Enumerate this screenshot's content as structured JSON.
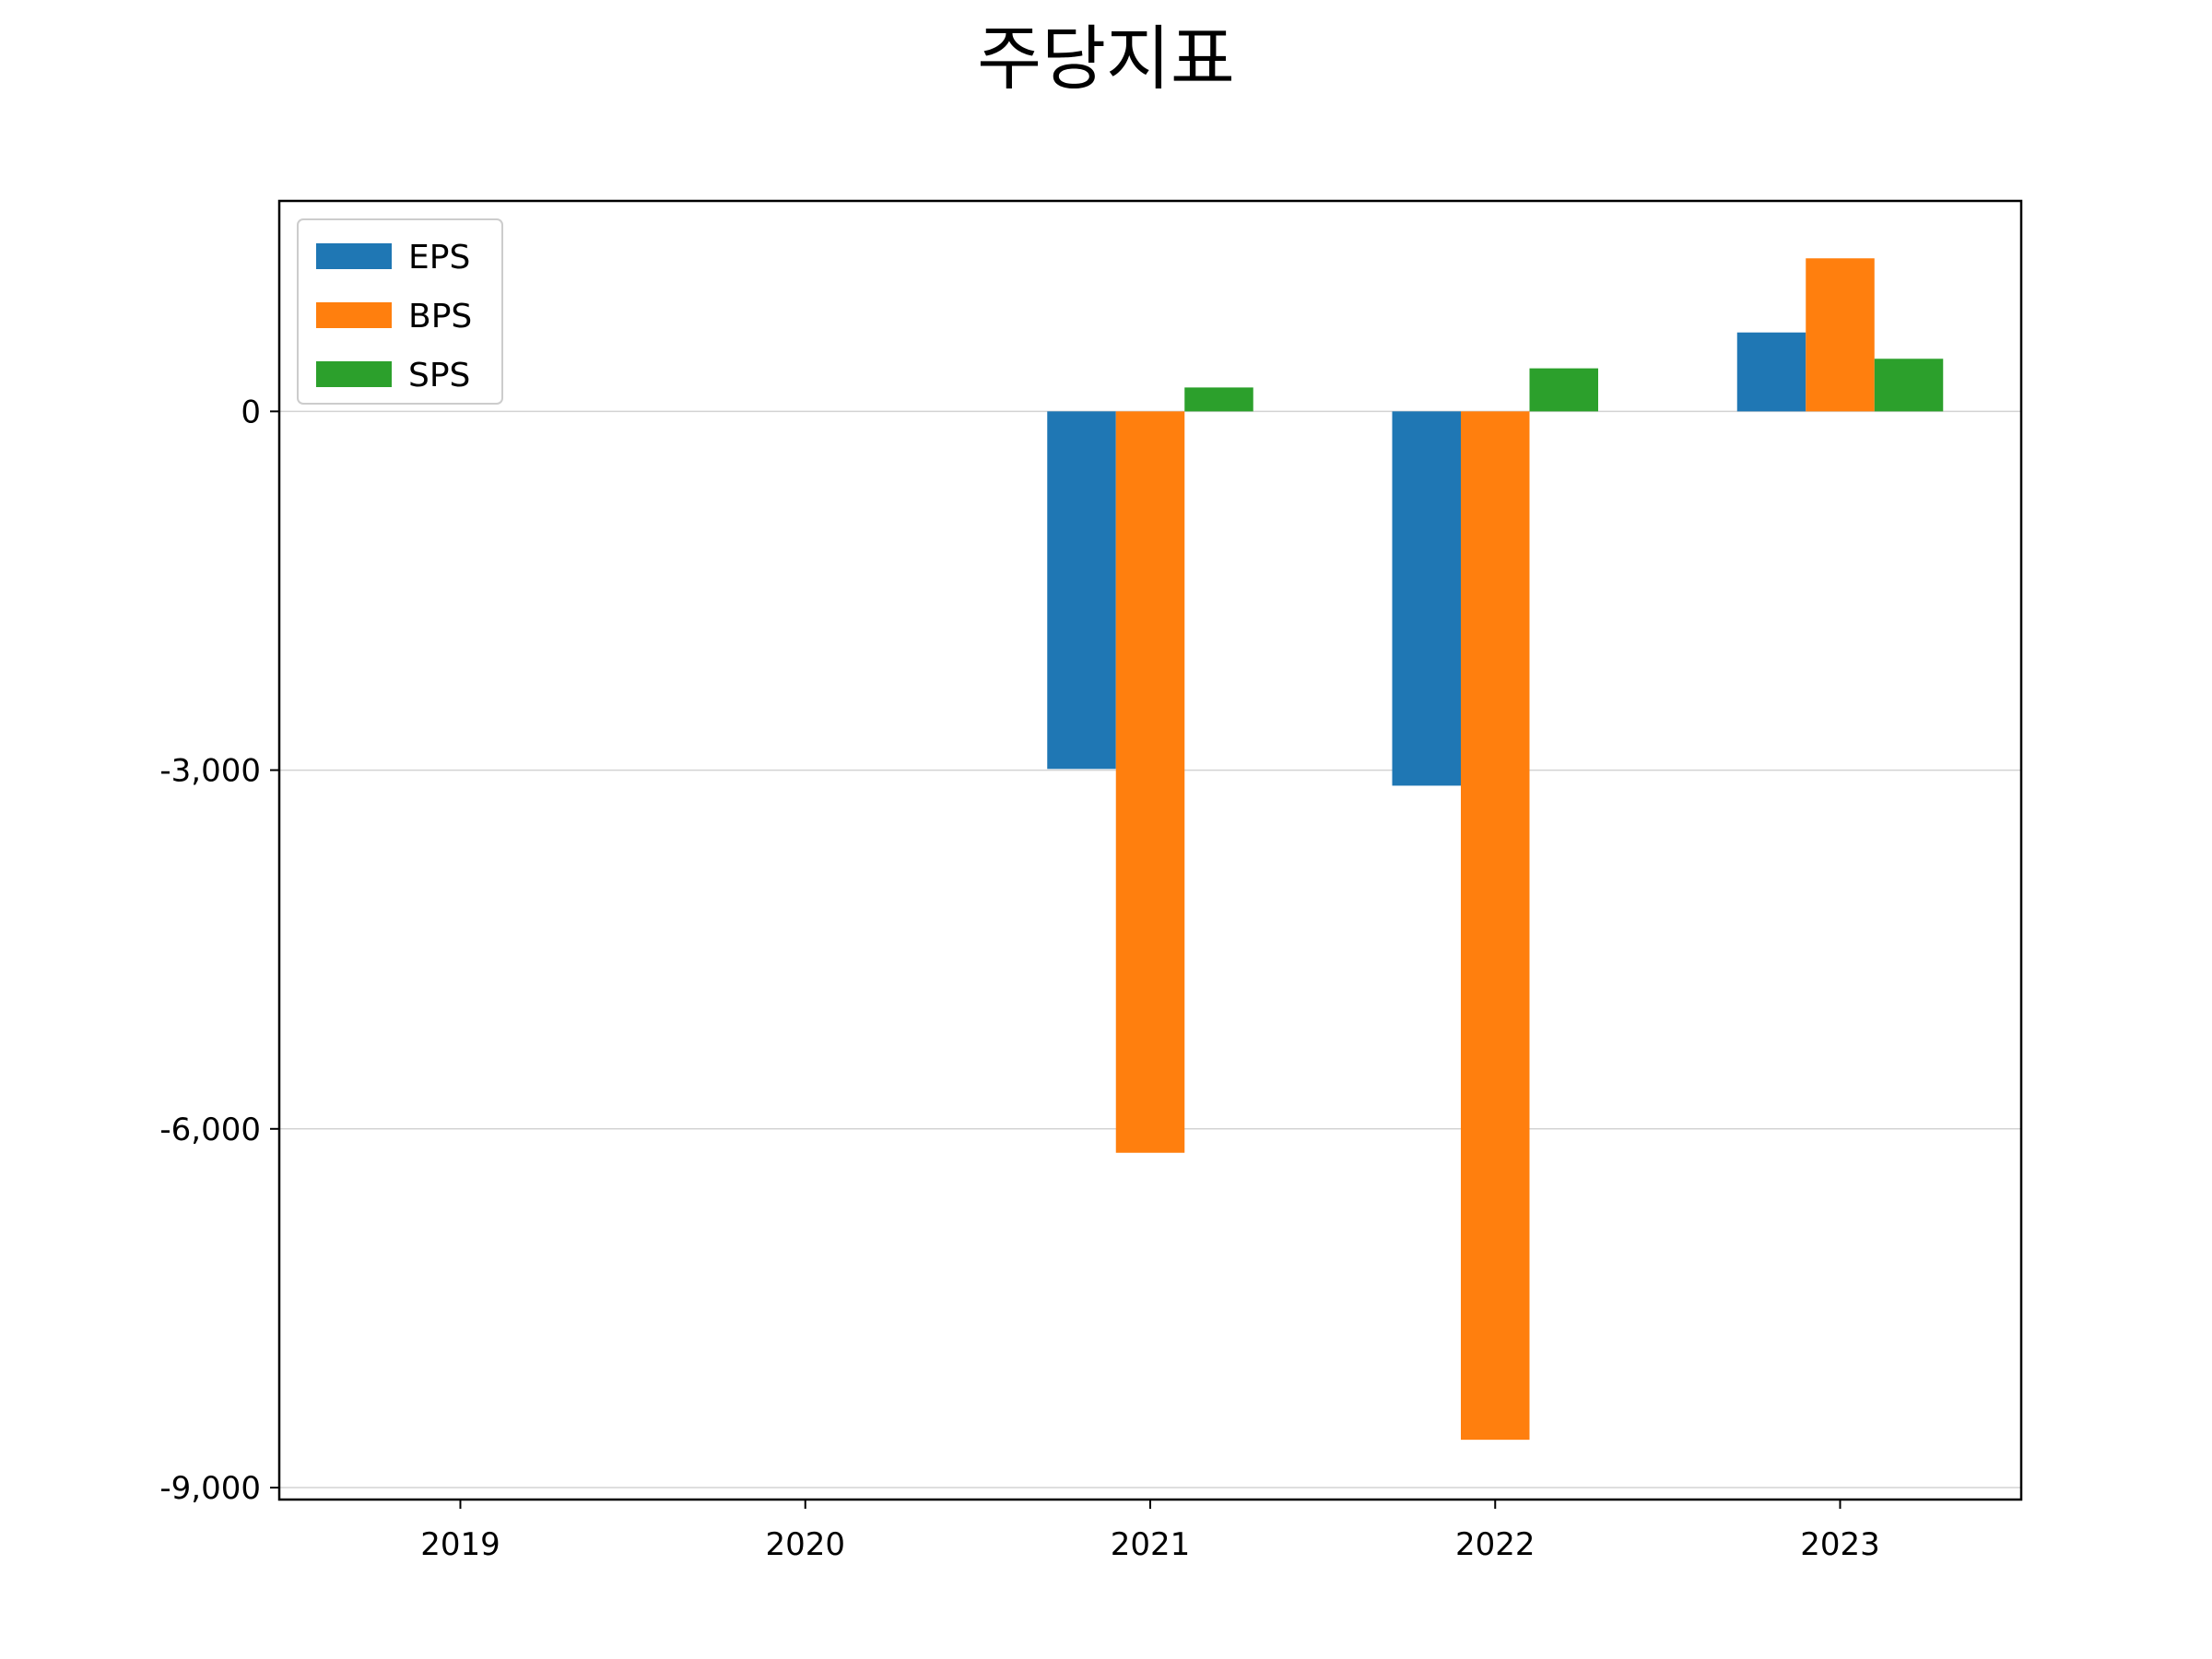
{
  "chart_data": {
    "type": "bar",
    "title": "주당지표",
    "xlabel": "",
    "ylabel": "",
    "categories": [
      "2019",
      "2020",
      "2021",
      "2022",
      "2023"
    ],
    "series": [
      {
        "name": "EPS",
        "color": "#1f77b4",
        "values": [
          null,
          null,
          -2990,
          -3130,
          660
        ]
      },
      {
        "name": "BPS",
        "color": "#ff7f0e",
        "values": [
          null,
          null,
          -6200,
          -8600,
          1280
        ]
      },
      {
        "name": "SPS",
        "color": "#2ca02c",
        "values": [
          null,
          null,
          200,
          360,
          440
        ]
      }
    ],
    "ylim": [
      -9100,
      1760
    ],
    "yticks": [
      0,
      -3000,
      -6000,
      -9000
    ],
    "ytick_labels": [
      "0",
      "-3,000",
      "-6,000",
      "-9,000"
    ],
    "grid": "horizontal",
    "legend_position": "top-left"
  }
}
